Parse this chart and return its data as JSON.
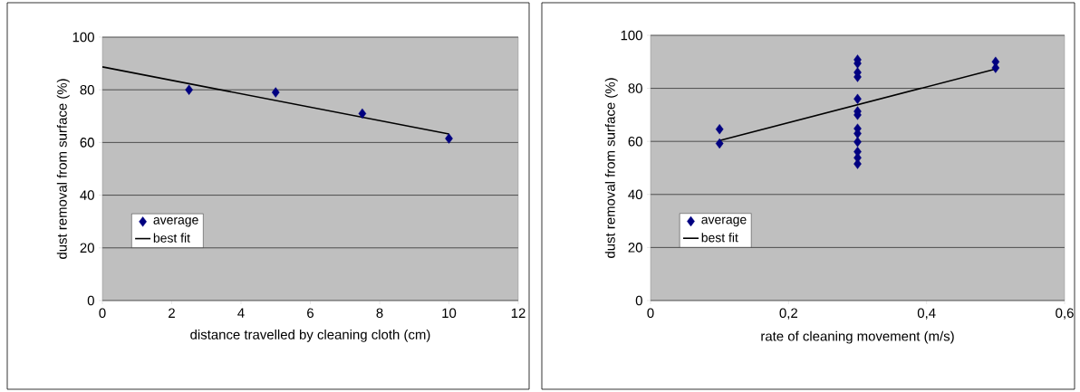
{
  "chart_data": [
    {
      "type": "scatter",
      "xlabel": "distance travelled by cleaning cloth (cm)",
      "ylabel": "dust removal from surface (%)",
      "xlim": [
        0,
        12
      ],
      "xticks": [
        0,
        2,
        4,
        6,
        8,
        10,
        12
      ],
      "ylim": [
        0,
        100
      ],
      "yticks": [
        0,
        20,
        40,
        60,
        80,
        100
      ],
      "grid": "y",
      "legend": "left",
      "series": [
        {
          "name": "average",
          "marker": "diamond",
          "color": "#000080",
          "x": [
            2.5,
            5,
            7.5,
            10
          ],
          "values": [
            80,
            79,
            71,
            61.5
          ]
        },
        {
          "name": "best fit",
          "type": "line",
          "marker": "none",
          "line_style": "solid",
          "color": "#000000",
          "x": [
            0,
            10
          ],
          "values": [
            88.7,
            63.2
          ]
        }
      ]
    },
    {
      "type": "scatter",
      "xlabel": "rate of cleaning movement (m/s)",
      "ylabel": "dust removal from surface (%)",
      "xlim": [
        0,
        0.6
      ],
      "xticks": [
        0,
        {
          "value": 0.2,
          "label": "0,2"
        },
        {
          "value": 0.4,
          "label": "0,4"
        },
        {
          "value": 0.6,
          "label": "0,6"
        }
      ],
      "ylim": [
        0,
        100
      ],
      "yticks": [
        0,
        20,
        40,
        60,
        80,
        100
      ],
      "grid": "y",
      "legend": "left",
      "series": [
        {
          "name": "average",
          "marker": "diamond",
          "color": "#000080",
          "x": [
            0.1,
            0.1,
            0.3,
            0.3,
            0.3,
            0.3,
            0.3,
            0.3,
            0.3,
            0.3,
            0.3,
            0.3,
            0.3,
            0.3,
            0.3,
            0.5,
            0.5
          ],
          "values": [
            64.6,
            59.2,
            90.8,
            89.4,
            86,
            84.3,
            76,
            71.3,
            70,
            64.8,
            63,
            59.8,
            56.1,
            53.8,
            51.5,
            90,
            87.7
          ]
        },
        {
          "name": "best fit",
          "type": "line",
          "marker": "none",
          "line_style": "solid",
          "color": "#000000",
          "x": [
            0.1,
            0.5
          ],
          "values": [
            60.3,
            87.3
          ]
        }
      ]
    }
  ]
}
